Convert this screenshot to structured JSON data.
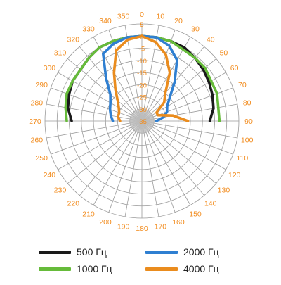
{
  "chart_data": {
    "type": "polar-line",
    "angle_ticks": [
      "0",
      "10",
      "20",
      "30",
      "40",
      "50",
      "60",
      "70",
      "80",
      "90",
      "100",
      "110",
      "120",
      "130",
      "140",
      "150",
      "160",
      "170",
      "180",
      "190",
      "200",
      "210",
      "220",
      "230",
      "240",
      "250",
      "260",
      "270",
      "280",
      "290",
      "300",
      "310",
      "320",
      "330",
      "340",
      "350"
    ],
    "radial_ticks": [
      "5",
      "0",
      "-5",
      "-10",
      "-15",
      "-20",
      "-25",
      "-30",
      "-35"
    ],
    "r_range": [
      -35,
      5
    ],
    "angle_direction": "clockwise",
    "angle_zero": "top",
    "grid": true,
    "legend_position": "bottom",
    "series": [
      {
        "name": "500 Гц",
        "color": "#1a1a1a",
        "points": [
          [
            270,
            -6
          ],
          [
            280,
            -4
          ],
          [
            290,
            -3
          ],
          [
            300,
            -2
          ],
          [
            310,
            -2
          ],
          [
            320,
            -1
          ],
          [
            330,
            0
          ],
          [
            340,
            0
          ],
          [
            350,
            0
          ],
          [
            0,
            0
          ],
          [
            10,
            0
          ],
          [
            20,
            0
          ],
          [
            30,
            0
          ],
          [
            40,
            -1
          ],
          [
            50,
            -2
          ],
          [
            60,
            -3
          ],
          [
            70,
            -4
          ],
          [
            80,
            -5
          ],
          [
            90,
            -7
          ]
        ]
      },
      {
        "name": "1000 Гц",
        "color": "#66bb3a",
        "points": [
          [
            270,
            -4
          ],
          [
            280,
            -3
          ],
          [
            290,
            -2
          ],
          [
            300,
            -2
          ],
          [
            310,
            -2
          ],
          [
            320,
            -1
          ],
          [
            330,
            0
          ],
          [
            340,
            0
          ],
          [
            350,
            0
          ],
          [
            0,
            0
          ],
          [
            10,
            0
          ],
          [
            20,
            0
          ],
          [
            30,
            -1
          ],
          [
            40,
            -1
          ],
          [
            50,
            -1
          ],
          [
            60,
            -2
          ],
          [
            70,
            -2
          ],
          [
            80,
            -3
          ],
          [
            90,
            -3
          ]
        ]
      },
      {
        "name": "2000 Гц",
        "color": "#2f7fd1",
        "points": [
          [
            270,
            -23
          ],
          [
            280,
            -22
          ],
          [
            290,
            -21
          ],
          [
            300,
            -20
          ],
          [
            310,
            -18
          ],
          [
            320,
            -12
          ],
          [
            330,
            -3
          ],
          [
            340,
            -1
          ],
          [
            350,
            0
          ],
          [
            0,
            0
          ],
          [
            10,
            0
          ],
          [
            20,
            -2
          ],
          [
            30,
            -6
          ],
          [
            40,
            -14
          ],
          [
            50,
            -20
          ],
          [
            60,
            -23
          ],
          [
            70,
            -24
          ],
          [
            80,
            -26
          ],
          [
            90,
            -29
          ]
        ]
      },
      {
        "name": "4000 Гц",
        "color": "#ea8c1e",
        "points": [
          [
            270,
            -26
          ],
          [
            280,
            -25
          ],
          [
            290,
            -25
          ],
          [
            300,
            -24
          ],
          [
            310,
            -22
          ],
          [
            320,
            -18
          ],
          [
            330,
            -12
          ],
          [
            340,
            -4
          ],
          [
            350,
            -1
          ],
          [
            0,
            0
          ],
          [
            10,
            -2
          ],
          [
            20,
            -6
          ],
          [
            30,
            -12
          ],
          [
            40,
            -20
          ],
          [
            50,
            -23
          ],
          [
            60,
            -28
          ],
          [
            70,
            -28
          ],
          [
            80,
            -22
          ],
          [
            90,
            -16
          ]
        ]
      }
    ]
  },
  "colors": {
    "tick_label": "#f28c1e",
    "grid": "#9a9a9a"
  }
}
